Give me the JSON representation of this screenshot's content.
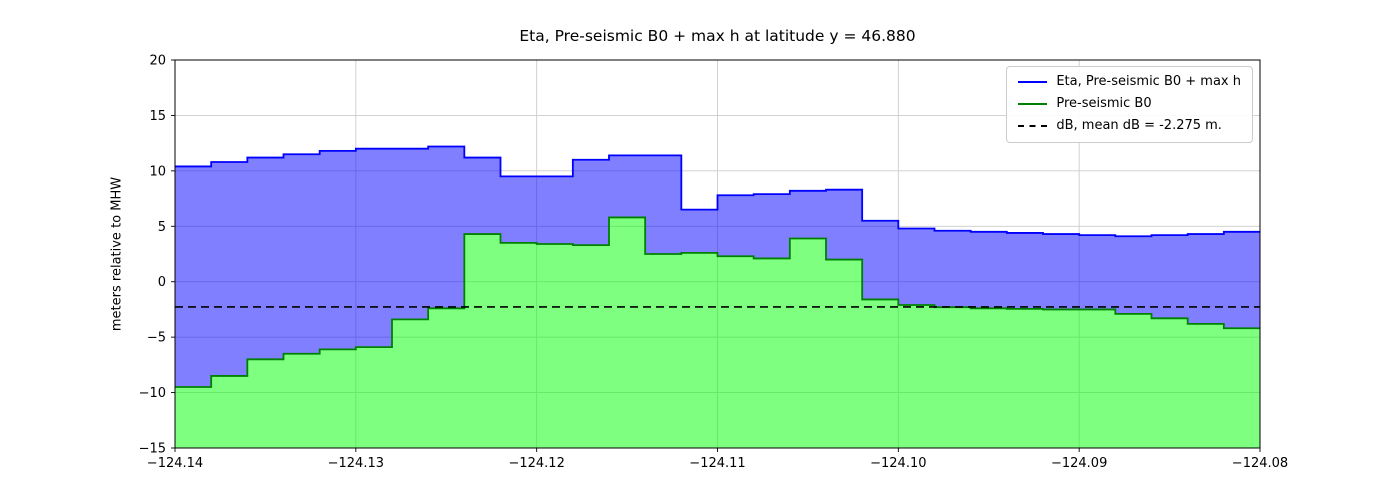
{
  "chart_data": {
    "type": "step-area",
    "title": "Eta, Pre-seismic B0 + max h at latitude y = 46.880",
    "xlabel": "",
    "ylabel": "meters relative to MHW",
    "xlim": [
      -124.14,
      -124.08
    ],
    "ylim": [
      -15,
      20
    ],
    "grid": true,
    "grid_color": "#cccccc",
    "spine_color": "#000000",
    "x_step_edges": [
      -124.14,
      -124.138,
      -124.136,
      -124.134,
      -124.132,
      -124.13,
      -124.128,
      -124.126,
      -124.124,
      -124.122,
      -124.12,
      -124.118,
      -124.116,
      -124.114,
      -124.112,
      -124.11,
      -124.108,
      -124.106,
      -124.104,
      -124.102,
      -124.1,
      -124.098,
      -124.096,
      -124.094,
      -124.092,
      -124.09,
      -124.088,
      -124.086,
      -124.084,
      -124.082,
      -124.08
    ],
    "series": [
      {
        "name": "Eta, Pre-seismic B0 + max h",
        "kind": "step",
        "line_color": "#0000ff",
        "fill_color": "#0000ff",
        "fill_opacity": 0.5,
        "fill_to": "Pre-seismic B0",
        "values": [
          10.4,
          10.8,
          11.2,
          11.5,
          11.8,
          12.0,
          12.0,
          12.2,
          11.2,
          9.5,
          9.5,
          11.0,
          11.4,
          11.4,
          6.5,
          7.8,
          7.9,
          8.2,
          8.3,
          5.5,
          4.8,
          4.6,
          4.5,
          4.4,
          4.3,
          4.2,
          4.1,
          4.2,
          4.3,
          4.5
        ]
      },
      {
        "name": "Pre-seismic B0",
        "kind": "step",
        "line_color": "#008000",
        "fill_color": "#00ff00",
        "fill_opacity": 0.5,
        "fill_to": "bottom",
        "values": [
          -9.5,
          -8.5,
          -7.0,
          -6.5,
          -6.1,
          -5.9,
          -3.4,
          -2.4,
          4.3,
          3.5,
          3.4,
          3.3,
          5.8,
          2.5,
          2.6,
          2.3,
          2.1,
          3.9,
          2.0,
          -1.6,
          -2.1,
          -2.3,
          -2.4,
          -2.45,
          -2.5,
          -2.5,
          -2.9,
          -3.3,
          -3.8,
          -4.2
        ]
      },
      {
        "name": "dB, mean dB = -2.275 m.",
        "kind": "hline",
        "y": -2.275,
        "line_color": "#000000",
        "dashed": true
      }
    ],
    "xticks": {
      "values": [
        -124.14,
        -124.13,
        -124.12,
        -124.11,
        -124.1,
        -124.09,
        -124.08
      ],
      "labels": [
        "−124.14",
        "−124.13",
        "−124.12",
        "−124.11",
        "−124.10",
        "−124.09",
        "−124.08"
      ]
    },
    "yticks": {
      "values": [
        -15,
        -10,
        -5,
        0,
        5,
        10,
        15,
        20
      ],
      "labels": [
        "−15",
        "−10",
        "−5",
        "0",
        "5",
        "10",
        "15",
        "20"
      ]
    },
    "legend": {
      "position": "upper right",
      "items": [
        {
          "label": "Eta, Pre-seismic B0 + max h",
          "color": "#0000ff",
          "style": "solid"
        },
        {
          "label": "Pre-seismic B0",
          "color": "#008000",
          "style": "solid"
        },
        {
          "label": "dB, mean dB = -2.275 m.",
          "color": "#000000",
          "style": "dashed"
        }
      ]
    }
  }
}
